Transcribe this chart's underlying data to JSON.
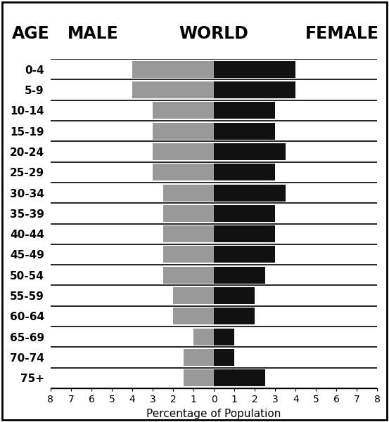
{
  "age_groups": [
    "0-4",
    "5-9",
    "10-14",
    "15-19",
    "20-24",
    "25-29",
    "30-34",
    "35-39",
    "40-44",
    "45-49",
    "50-54",
    "55-59",
    "60-64",
    "65-69",
    "70-74",
    "75+"
  ],
  "male_values": [
    4.0,
    4.0,
    3.0,
    3.0,
    3.0,
    3.0,
    2.5,
    2.5,
    2.5,
    2.5,
    2.5,
    2.0,
    2.0,
    1.0,
    1.5,
    1.5
  ],
  "female_values": [
    4.0,
    4.0,
    3.0,
    3.0,
    3.5,
    3.0,
    3.5,
    3.0,
    3.0,
    3.0,
    2.5,
    2.0,
    2.0,
    1.0,
    1.0,
    2.5
  ],
  "male_color": "#999999",
  "female_color": "#111111",
  "title_age": "AGE",
  "title_male": "MALE",
  "title_world": "WORLD",
  "title_female": "FEMALE",
  "xlabel": "Percentage of Population",
  "xlim": [
    -8,
    8
  ],
  "xticks": [
    -8,
    -7,
    -6,
    -5,
    -4,
    -3,
    -2,
    -1,
    0,
    1,
    2,
    3,
    4,
    5,
    6,
    7,
    8
  ],
  "xticklabels": [
    "8",
    "7",
    "6",
    "5",
    "4",
    "3",
    "2",
    "1",
    "0",
    "1",
    "2",
    "3",
    "4",
    "5",
    "6",
    "7",
    "8"
  ],
  "background_color": "#ffffff",
  "title_fontsize": 17,
  "age_fontsize": 11,
  "tick_fontsize": 10,
  "xlabel_fontsize": 11
}
